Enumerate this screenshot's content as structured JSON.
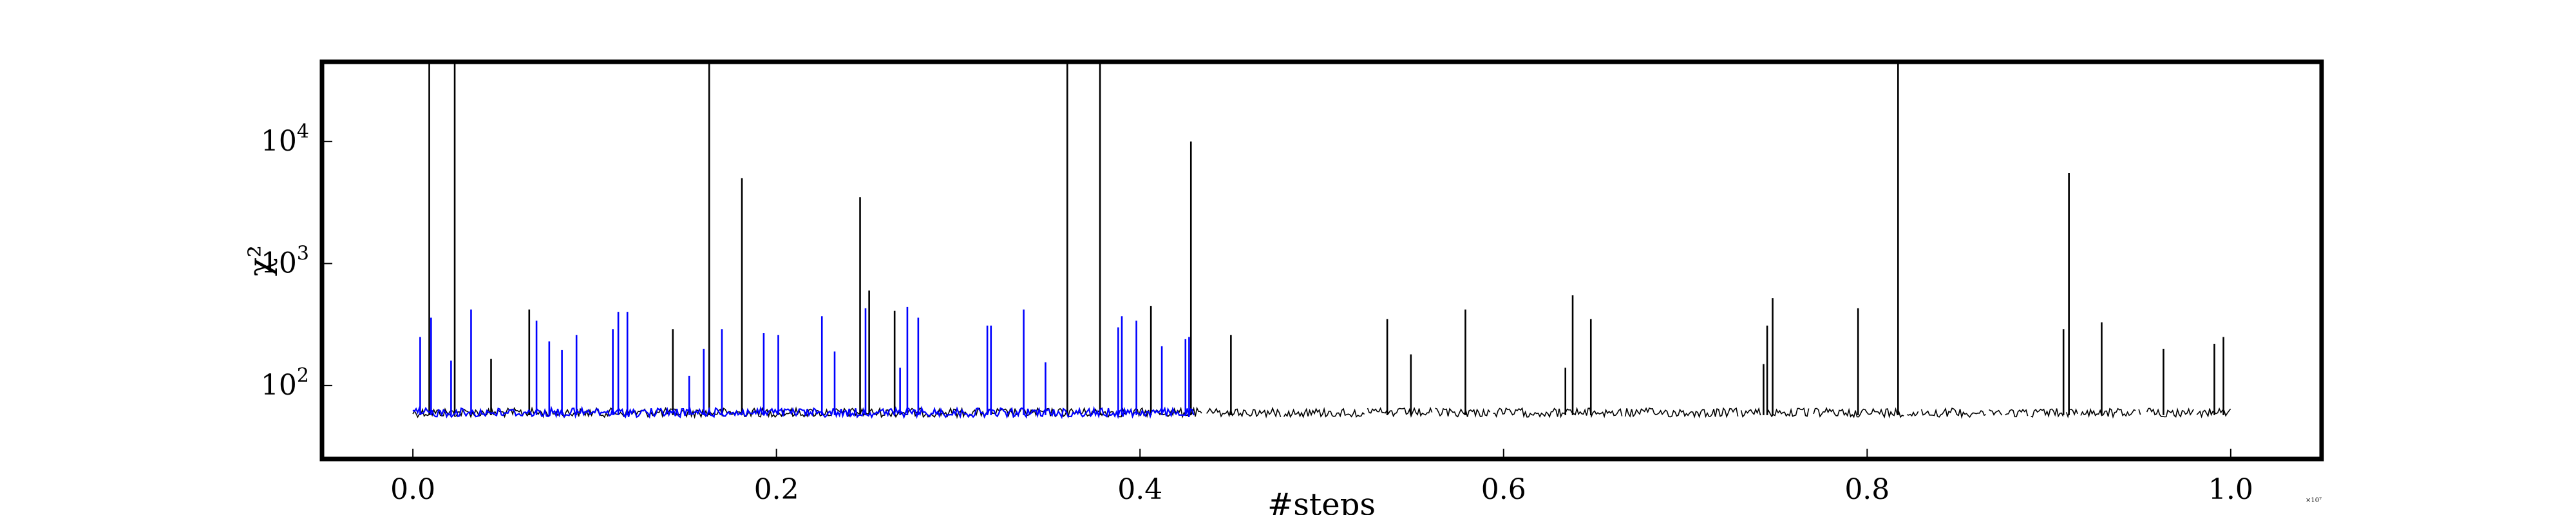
{
  "chart_data": {
    "type": "line",
    "title": "",
    "xlabel": "#steps",
    "ylabel": "χ²",
    "x_offset_label": "×10⁷",
    "yscale": "log",
    "xlim": [
      -0.05,
      1.05
    ],
    "ylim": [
      25,
      45000
    ],
    "grid": false,
    "legend": "none",
    "x_ticks": [
      {
        "value": 0.0,
        "label": "0.0"
      },
      {
        "value": 0.2,
        "label": "0.2"
      },
      {
        "value": 0.4,
        "label": "0.4"
      },
      {
        "value": 0.6,
        "label": "0.6"
      },
      {
        "value": 0.8,
        "label": "0.8"
      },
      {
        "value": 1.0,
        "label": "1.0"
      }
    ],
    "y_ticks": [
      {
        "value": 100,
        "base": "10",
        "exp": "2"
      },
      {
        "value": 1000,
        "base": "10",
        "exp": "3"
      },
      {
        "value": 10000,
        "base": "10",
        "exp": "4"
      }
    ],
    "series": [
      {
        "color": "#000000",
        "x_range": [
          0.0,
          1.0
        ],
        "baseline": 60,
        "spikes": [
          {
            "x": 0.009,
            "y": 45000
          },
          {
            "x": 0.023,
            "y": 45000
          },
          {
            "x": 0.043,
            "y": 165
          },
          {
            "x": 0.064,
            "y": 420
          },
          {
            "x": 0.143,
            "y": 290
          },
          {
            "x": 0.163,
            "y": 45000
          },
          {
            "x": 0.181,
            "y": 5000
          },
          {
            "x": 0.246,
            "y": 3500
          },
          {
            "x": 0.251,
            "y": 600
          },
          {
            "x": 0.265,
            "y": 410
          },
          {
            "x": 0.36,
            "y": 45000
          },
          {
            "x": 0.378,
            "y": 45000
          },
          {
            "x": 0.406,
            "y": 450
          },
          {
            "x": 0.428,
            "y": 10000
          },
          {
            "x": 0.45,
            "y": 260
          },
          {
            "x": 0.536,
            "y": 350
          },
          {
            "x": 0.549,
            "y": 180
          },
          {
            "x": 0.579,
            "y": 420
          },
          {
            "x": 0.634,
            "y": 140
          },
          {
            "x": 0.638,
            "y": 550
          },
          {
            "x": 0.648,
            "y": 350
          },
          {
            "x": 0.743,
            "y": 150
          },
          {
            "x": 0.745,
            "y": 310
          },
          {
            "x": 0.748,
            "y": 520
          },
          {
            "x": 0.795,
            "y": 430
          },
          {
            "x": 0.817,
            "y": 45000
          },
          {
            "x": 0.908,
            "y": 290
          },
          {
            "x": 0.911,
            "y": 5500
          },
          {
            "x": 0.929,
            "y": 330
          },
          {
            "x": 0.963,
            "y": 200
          },
          {
            "x": 0.991,
            "y": 220
          },
          {
            "x": 0.996,
            "y": 250
          }
        ]
      },
      {
        "color": "#0000ff",
        "x_range": [
          0.0,
          0.43
        ],
        "baseline": 60,
        "spikes": [
          {
            "x": 0.004,
            "y": 250
          },
          {
            "x": 0.01,
            "y": 360
          },
          {
            "x": 0.021,
            "y": 160
          },
          {
            "x": 0.032,
            "y": 420
          },
          {
            "x": 0.068,
            "y": 340
          },
          {
            "x": 0.075,
            "y": 230
          },
          {
            "x": 0.082,
            "y": 195
          },
          {
            "x": 0.09,
            "y": 260
          },
          {
            "x": 0.11,
            "y": 290
          },
          {
            "x": 0.113,
            "y": 400
          },
          {
            "x": 0.118,
            "y": 400
          },
          {
            "x": 0.152,
            "y": 120
          },
          {
            "x": 0.16,
            "y": 200
          },
          {
            "x": 0.17,
            "y": 290
          },
          {
            "x": 0.193,
            "y": 270
          },
          {
            "x": 0.201,
            "y": 260
          },
          {
            "x": 0.225,
            "y": 370
          },
          {
            "x": 0.232,
            "y": 190
          },
          {
            "x": 0.249,
            "y": 430
          },
          {
            "x": 0.268,
            "y": 140
          },
          {
            "x": 0.272,
            "y": 440
          },
          {
            "x": 0.278,
            "y": 360
          },
          {
            "x": 0.316,
            "y": 310
          },
          {
            "x": 0.318,
            "y": 310
          },
          {
            "x": 0.336,
            "y": 420
          },
          {
            "x": 0.348,
            "y": 155
          },
          {
            "x": 0.388,
            "y": 300
          },
          {
            "x": 0.39,
            "y": 370
          },
          {
            "x": 0.398,
            "y": 340
          },
          {
            "x": 0.412,
            "y": 210
          },
          {
            "x": 0.425,
            "y": 240
          },
          {
            "x": 0.427,
            "y": 250
          }
        ]
      }
    ]
  }
}
